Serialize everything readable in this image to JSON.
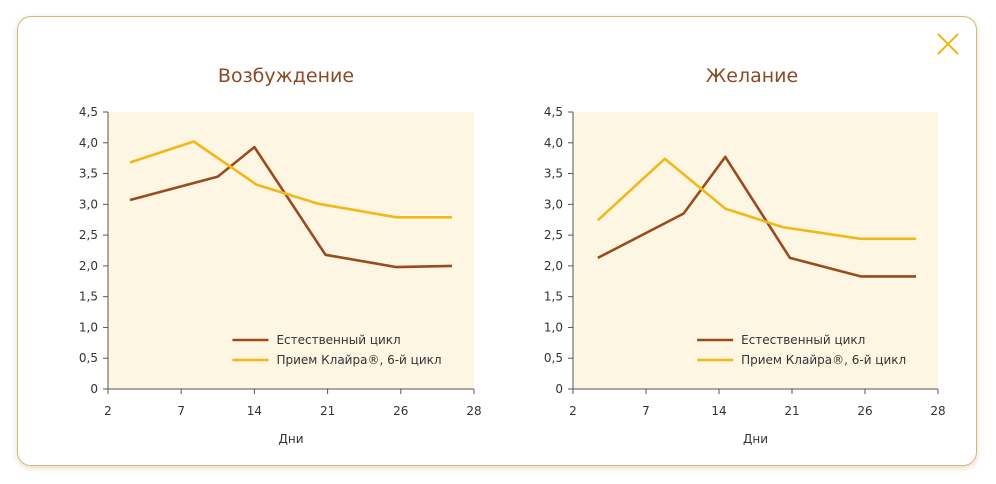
{
  "close_icon": "close-icon",
  "colors": {
    "frame_border": "#d6b877",
    "plot_background": "#fdf6e3",
    "title": "#8b4a26",
    "natural": "#9a4b1e",
    "klaira": "#f0b818",
    "close": "#f0b818"
  },
  "chart_data": [
    {
      "type": "line",
      "title": "Возбуждение",
      "xlabel": "Дни",
      "ylabel": "",
      "x_ticks": [
        "2",
        "7",
        "14",
        "21",
        "26",
        "28"
      ],
      "y_ticks": [
        "0",
        "0,5",
        "1,0",
        "1,5",
        "2,0",
        "2,5",
        "3,0",
        "3,5",
        "4,0",
        "4,5"
      ],
      "ylim": [
        0,
        4.5
      ],
      "grid": false,
      "legend_position": "bottom-right",
      "series": [
        {
          "name": "Естественный цикл",
          "color": "#9a4b1e",
          "x": [
            3.5,
            10.5,
            14.0,
            20.8,
            25.7,
            27.4
          ],
          "values": [
            3.07,
            3.45,
            3.93,
            2.18,
            1.98,
            2.0
          ]
        },
        {
          "name": "Прием Клайра®, 6-й цикл",
          "color": "#f0b818",
          "x": [
            3.5,
            8.2,
            14.2,
            20.1,
            25.7,
            27.4
          ],
          "values": [
            3.68,
            4.02,
            3.32,
            3.01,
            2.79,
            2.79
          ]
        }
      ]
    },
    {
      "type": "line",
      "title": "Желание",
      "xlabel": "Дни",
      "ylabel": "",
      "x_ticks": [
        "2",
        "7",
        "14",
        "21",
        "26",
        "28"
      ],
      "y_ticks": [
        "0",
        "0,5",
        "1,0",
        "1,5",
        "2,0",
        "2,5",
        "3,0",
        "3,5",
        "4,0",
        "4,5"
      ],
      "ylim": [
        0,
        4.5
      ],
      "grid": false,
      "legend_position": "bottom-right",
      "series": [
        {
          "name": "Естественный цикл",
          "color": "#9a4b1e",
          "x": [
            3.7,
            10.6,
            14.6,
            20.8,
            25.7,
            27.4
          ],
          "values": [
            2.13,
            2.85,
            3.77,
            2.13,
            1.83,
            1.83
          ]
        },
        {
          "name": "Прием Клайра®, 6-й цикл",
          "color": "#f0b818",
          "x": [
            3.7,
            8.8,
            14.6,
            20.1,
            25.7,
            27.4
          ],
          "values": [
            2.74,
            3.74,
            2.93,
            2.63,
            2.44,
            2.44
          ]
        }
      ]
    }
  ]
}
